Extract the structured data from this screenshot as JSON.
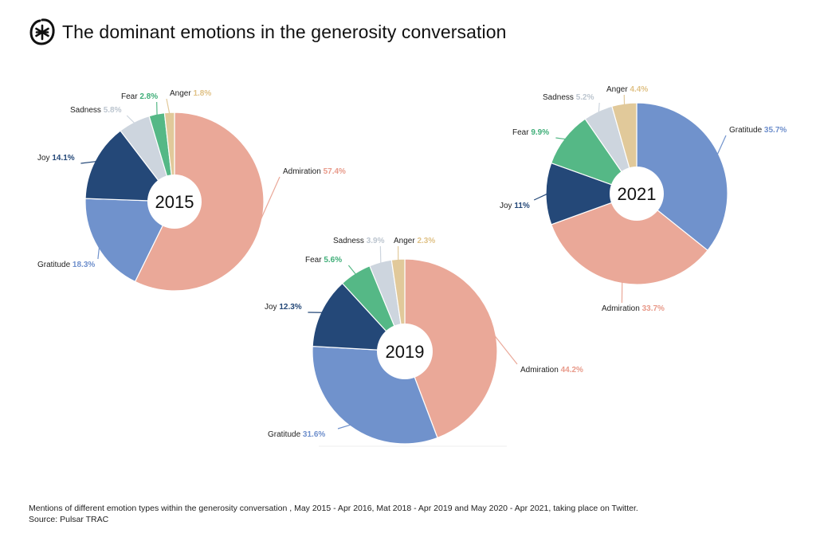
{
  "title": "The dominant emotions in the generosity conversation",
  "logo_icon": "asterisk-in-circle-icon",
  "colors": {
    "Admiration": {
      "fill": "#EAA898",
      "text": "#E89A8A"
    },
    "Gratitude": {
      "fill": "#7092CC",
      "text": "#6E8FCC"
    },
    "Joy": {
      "fill": "#244878",
      "text": "#244878"
    },
    "Fear": {
      "fill": "#55B886",
      "text": "#3FAE78"
    },
    "Sadness": {
      "fill": "#CDD5DE",
      "text": "#BCC5CF"
    },
    "Anger": {
      "fill": "#E1C99A",
      "text": "#E0C287"
    }
  },
  "chart_data": [
    {
      "type": "pie",
      "title": "2015",
      "donut": true,
      "slices": [
        {
          "label": "Admiration",
          "value": 57.4,
          "display": "57.4%"
        },
        {
          "label": "Gratitude",
          "value": 18.3,
          "display": "18.3%"
        },
        {
          "label": "Joy",
          "value": 14.1,
          "display": "14.1%"
        },
        {
          "label": "Sadness",
          "value": 5.8,
          "display": "5.8%"
        },
        {
          "label": "Fear",
          "value": 2.8,
          "display": "2.8%"
        },
        {
          "label": "Anger",
          "value": 1.8,
          "display": "1.8%"
        }
      ]
    },
    {
      "type": "pie",
      "title": "2019",
      "donut": true,
      "slices": [
        {
          "label": "Admiration",
          "value": 44.2,
          "display": "44.2%"
        },
        {
          "label": "Gratitude",
          "value": 31.6,
          "display": "31.6%"
        },
        {
          "label": "Joy",
          "value": 12.3,
          "display": "12.3%"
        },
        {
          "label": "Fear",
          "value": 5.6,
          "display": "5.6%"
        },
        {
          "label": "Sadness",
          "value": 3.9,
          "display": "3.9%"
        },
        {
          "label": "Anger",
          "value": 2.3,
          "display": "2.3%"
        }
      ]
    },
    {
      "type": "pie",
      "title": "2021",
      "donut": true,
      "slices": [
        {
          "label": "Gratitude",
          "value": 35.7,
          "display": "35.7%"
        },
        {
          "label": "Admiration",
          "value": 33.7,
          "display": "33.7%"
        },
        {
          "label": "Joy",
          "value": 11,
          "display": "11%"
        },
        {
          "label": "Fear",
          "value": 9.9,
          "display": "9.9%"
        },
        {
          "label": "Sadness",
          "value": 5.2,
          "display": "5.2%"
        },
        {
          "label": "Anger",
          "value": 4.4,
          "display": "4.4%"
        }
      ]
    }
  ],
  "footer": {
    "note": "Mentions of different emotion types within the generosity conversation , May 2015 - Apr 2016, Mat 2018 - Apr 2019 and May 2020 - Apr 2021, taking place on Twitter.",
    "source": "Source: Pulsar TRAC"
  }
}
